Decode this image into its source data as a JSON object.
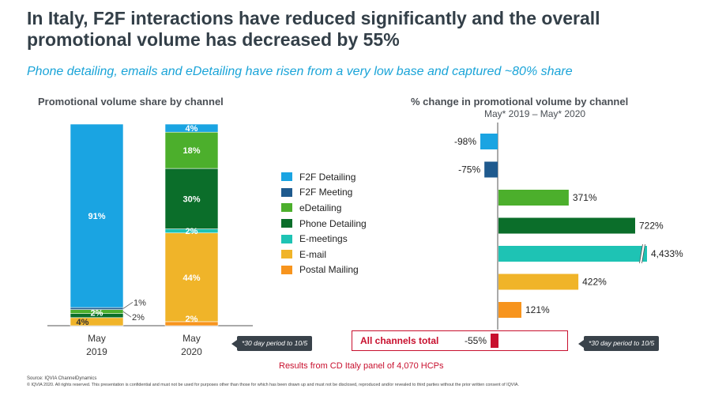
{
  "title": "In Italy, F2F interactions have reduced significantly and the overall promotional volume has decreased by 55%",
  "subtitle": "Phone detailing, emails and eDetailing have risen from a very low base and captured ~80% share",
  "colors": {
    "F2F Detailing": "#1aa4e2",
    "F2F Meeting": "#1f5a8e",
    "eDetailing": "#4caf2c",
    "Phone Detailing": "#0b6e2a",
    "E-meetings": "#1ec3b4",
    "E-mail": "#f0b429",
    "Postal Mailing": "#f7941d",
    "total": "#c8102e"
  },
  "legend": [
    "F2F Detailing",
    "F2F Meeting",
    "eDetailing",
    "Phone Detailing",
    "E-meetings",
    "E-mail",
    "Postal Mailing"
  ],
  "chart_data": [
    {
      "type": "bar",
      "stacked": true,
      "title": "Promotional volume share by channel",
      "categories": [
        "May\n2019",
        "May\n2020"
      ],
      "category_lines": [
        [
          "May",
          "2019"
        ],
        [
          "May",
          "2020"
        ]
      ],
      "ylim": [
        0,
        100
      ],
      "series": [
        {
          "name": "F2F Detailing",
          "values": [
            91,
            4
          ],
          "labels": [
            "91%",
            "4%"
          ]
        },
        {
          "name": "F2F Meeting",
          "values": [
            1,
            0
          ],
          "labels": [
            "",
            ""
          ]
        },
        {
          "name": "eDetailing",
          "values": [
            2,
            18
          ],
          "labels": [
            "",
            "18%"
          ]
        },
        {
          "name": "Phone Detailing",
          "values": [
            2,
            30
          ],
          "labels": [
            "2%",
            "30%"
          ]
        },
        {
          "name": "E-meetings",
          "values": [
            0,
            2
          ],
          "labels": [
            "",
            "2%"
          ]
        },
        {
          "name": "E-mail",
          "values": [
            4,
            44
          ],
          "labels": [
            "4%",
            "44%"
          ]
        },
        {
          "name": "Postal Mailing",
          "values": [
            0,
            2
          ],
          "labels": [
            "",
            "2%"
          ]
        }
      ],
      "callouts": [
        "1%",
        "2%"
      ],
      "stack_order": [
        "Postal Mailing",
        "E-mail",
        "E-meetings",
        "Phone Detailing",
        "eDetailing",
        "F2F Meeting",
        "F2F Detailing"
      ],
      "note": "*30 day period to 10/5"
    },
    {
      "type": "bar",
      "orientation": "horizontal",
      "title": "% change in promotional volume by channel",
      "subtitle": "May* 2019 – May* 2020",
      "categories": [
        "F2F Detailing",
        "F2F Meeting",
        "eDetailing",
        "Phone Detailing",
        "E-meetings",
        "E-mail",
        "Postal Mailing",
        "All channels total"
      ],
      "values": [
        -98,
        -75,
        371,
        722,
        4433,
        422,
        121,
        -55
      ],
      "labels": [
        "-98%",
        "-75%",
        "371%",
        "722%",
        "4,433%",
        "422%",
        "121%",
        "-55%"
      ],
      "axis_break": {
        "category": "E-meetings"
      },
      "total_label": "All channels total",
      "note": "*30 day period to 10/5"
    }
  ],
  "panel_note": "Results from CD Italy panel of 4,070 HCPs",
  "source": "Source: IQVIA ChannelDynamics",
  "copyright": "© IQVIA 2020. All rights reserved. This presentation is confidential and must not be used for purposes other than those for which has been drawn up and must not be disclosed, reproduced and/or revealed to third parties without the prior written consent of IQVIA."
}
